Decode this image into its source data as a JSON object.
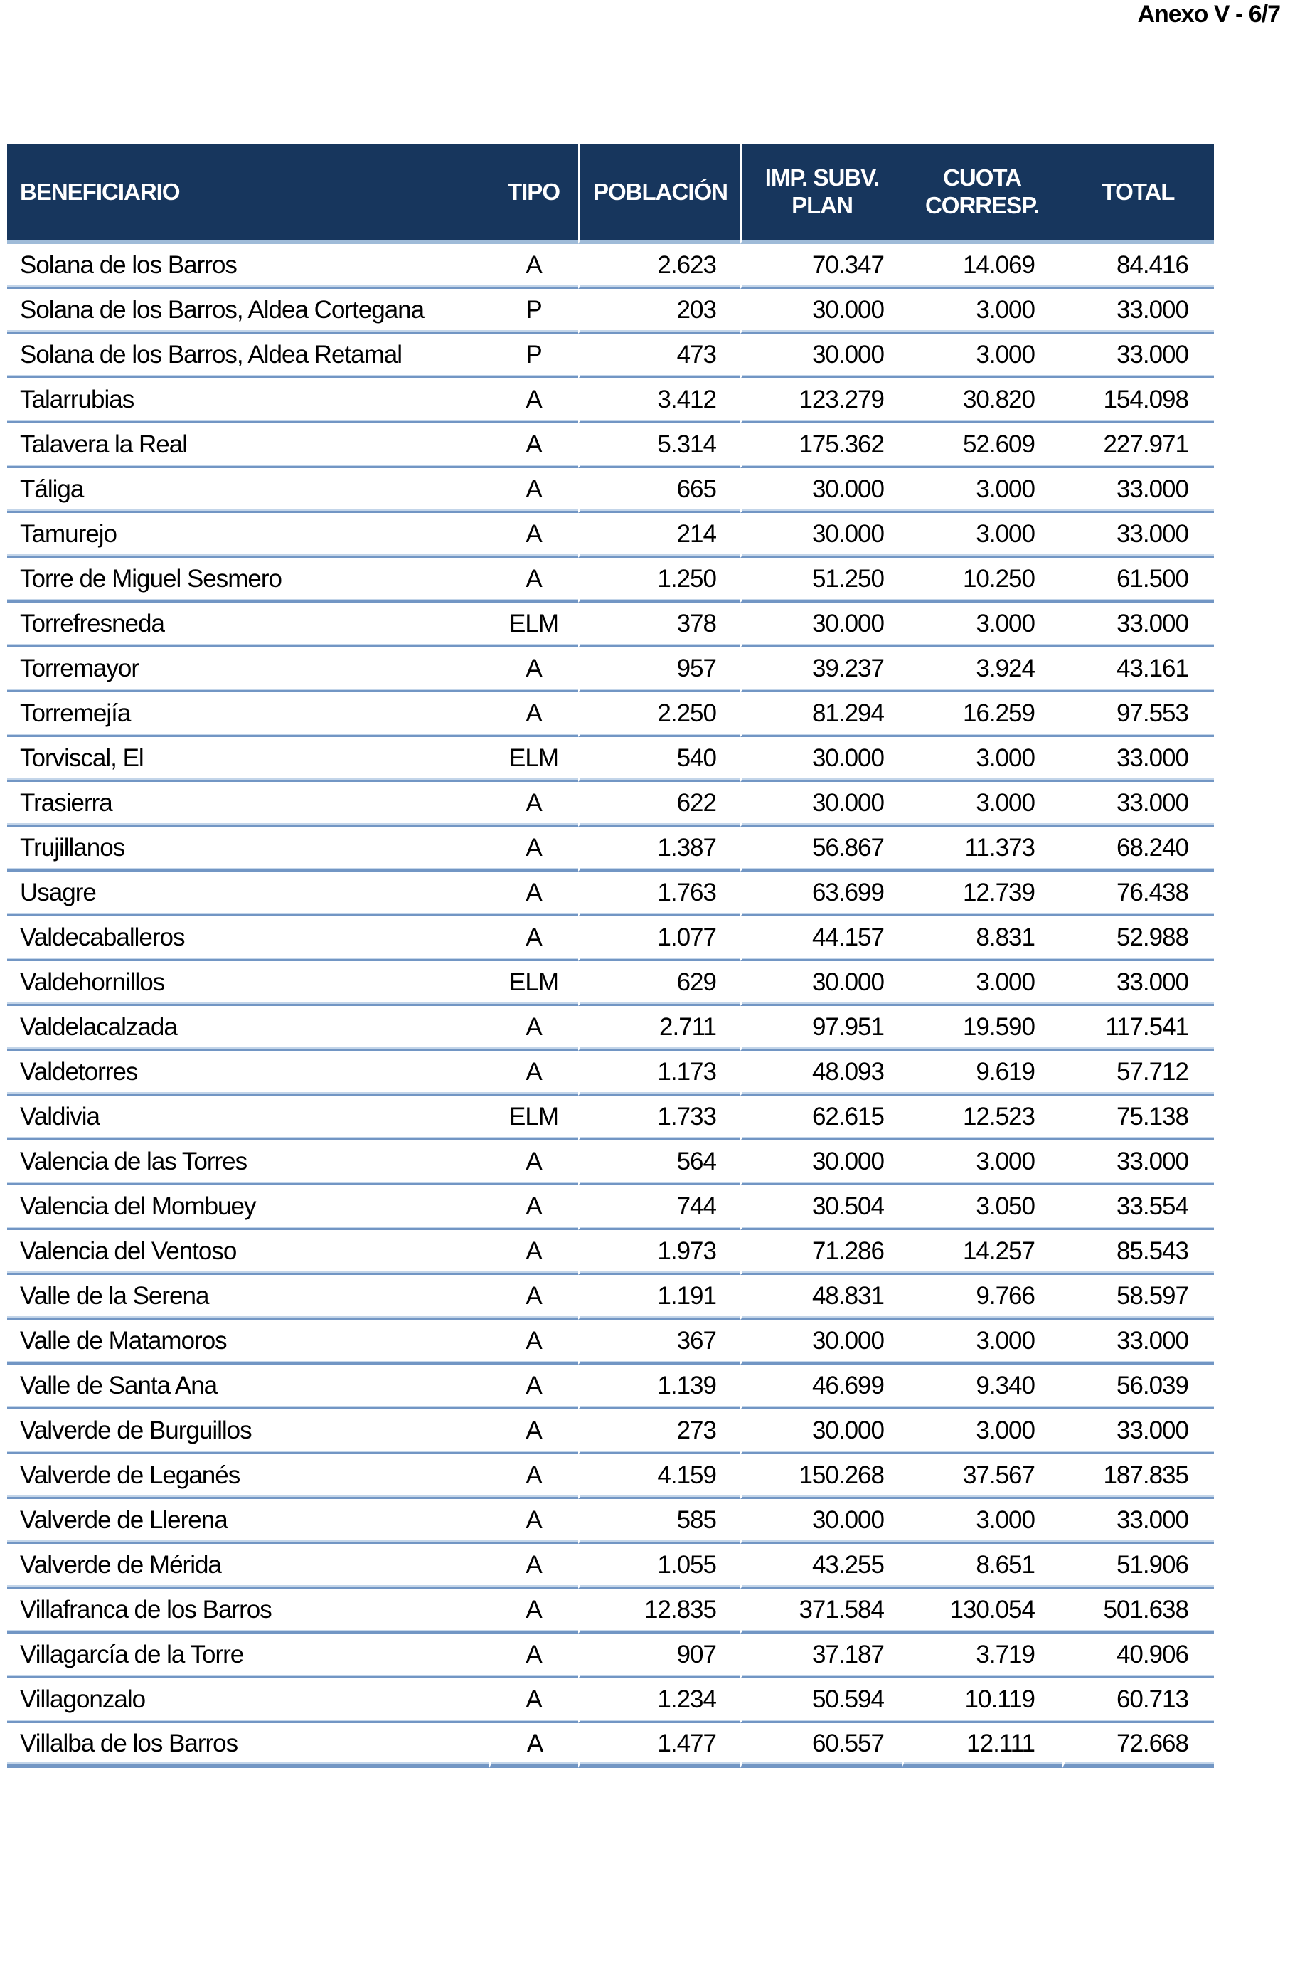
{
  "page": {
    "title": "Anexo V - 6/7"
  },
  "colors": {
    "page_bg": "#FFFFFF",
    "header_bg": "#17365D",
    "header_text": "#FFFFFF",
    "row_text": "#000000",
    "separator": "#7296C4",
    "separator_light": "#C3D5E9",
    "header_underline": "#9FBBD8"
  },
  "table": {
    "columns": [
      {
        "key": "beneficiario",
        "label": "BENEFICIARIO"
      },
      {
        "key": "tipo",
        "label": "TIPO"
      },
      {
        "key": "poblacion",
        "label": "POBLACIÓN"
      },
      {
        "key": "imp_subv_plan",
        "label": "IMP. SUBV.\nPLAN"
      },
      {
        "key": "cuota_corresp",
        "label": "CUOTA\nCORRESP."
      },
      {
        "key": "total",
        "label": "TOTAL"
      }
    ],
    "rows": [
      [
        "Solana de los Barros",
        "A",
        "2.623",
        "70.347",
        "14.069",
        "84.416"
      ],
      [
        "Solana de los Barros, Aldea Cortegana",
        "P",
        "203",
        "30.000",
        "3.000",
        "33.000"
      ],
      [
        "Solana de los Barros, Aldea Retamal",
        "P",
        "473",
        "30.000",
        "3.000",
        "33.000"
      ],
      [
        "Talarrubias",
        "A",
        "3.412",
        "123.279",
        "30.820",
        "154.098"
      ],
      [
        "Talavera la Real",
        "A",
        "5.314",
        "175.362",
        "52.609",
        "227.971"
      ],
      [
        "Táliga",
        "A",
        "665",
        "30.000",
        "3.000",
        "33.000"
      ],
      [
        "Tamurejo",
        "A",
        "214",
        "30.000",
        "3.000",
        "33.000"
      ],
      [
        "Torre de Miguel Sesmero",
        "A",
        "1.250",
        "51.250",
        "10.250",
        "61.500"
      ],
      [
        "Torrefresneda",
        "ELM",
        "378",
        "30.000",
        "3.000",
        "33.000"
      ],
      [
        "Torremayor",
        "A",
        "957",
        "39.237",
        "3.924",
        "43.161"
      ],
      [
        "Torremejía",
        "A",
        "2.250",
        "81.294",
        "16.259",
        "97.553"
      ],
      [
        "Torviscal, El",
        "ELM",
        "540",
        "30.000",
        "3.000",
        "33.000"
      ],
      [
        "Trasierra",
        "A",
        "622",
        "30.000",
        "3.000",
        "33.000"
      ],
      [
        "Trujillanos",
        "A",
        "1.387",
        "56.867",
        "11.373",
        "68.240"
      ],
      [
        "Usagre",
        "A",
        "1.763",
        "63.699",
        "12.739",
        "76.438"
      ],
      [
        "Valdecaballeros",
        "A",
        "1.077",
        "44.157",
        "8.831",
        "52.988"
      ],
      [
        "Valdehornillos",
        "ELM",
        "629",
        "30.000",
        "3.000",
        "33.000"
      ],
      [
        "Valdelacalzada",
        "A",
        "2.711",
        "97.951",
        "19.590",
        "117.541"
      ],
      [
        "Valdetorres",
        "A",
        "1.173",
        "48.093",
        "9.619",
        "57.712"
      ],
      [
        "Valdivia",
        "ELM",
        "1.733",
        "62.615",
        "12.523",
        "75.138"
      ],
      [
        "Valencia de las Torres",
        "A",
        "564",
        "30.000",
        "3.000",
        "33.000"
      ],
      [
        "Valencia del Mombuey",
        "A",
        "744",
        "30.504",
        "3.050",
        "33.554"
      ],
      [
        "Valencia del Ventoso",
        "A",
        "1.973",
        "71.286",
        "14.257",
        "85.543"
      ],
      [
        "Valle de la Serena",
        "A",
        "1.191",
        "48.831",
        "9.766",
        "58.597"
      ],
      [
        "Valle de Matamoros",
        "A",
        "367",
        "30.000",
        "3.000",
        "33.000"
      ],
      [
        "Valle de Santa Ana",
        "A",
        "1.139",
        "46.699",
        "9.340",
        "56.039"
      ],
      [
        "Valverde de Burguillos",
        "A",
        "273",
        "30.000",
        "3.000",
        "33.000"
      ],
      [
        "Valverde de Leganés",
        "A",
        "4.159",
        "150.268",
        "37.567",
        "187.835"
      ],
      [
        "Valverde de Llerena",
        "A",
        "585",
        "30.000",
        "3.000",
        "33.000"
      ],
      [
        "Valverde de Mérida",
        "A",
        "1.055",
        "43.255",
        "8.651",
        "51.906"
      ],
      [
        "Villafranca de los Barros",
        "A",
        "12.835",
        "371.584",
        "130.054",
        "501.638"
      ],
      [
        "Villagarcía de la Torre",
        "A",
        "907",
        "37.187",
        "3.719",
        "40.906"
      ],
      [
        "Villagonzalo",
        "A",
        "1.234",
        "50.594",
        "10.119",
        "60.713"
      ],
      [
        "Villalba de los Barros",
        "A",
        "1.477",
        "60.557",
        "12.111",
        "72.668"
      ]
    ]
  }
}
